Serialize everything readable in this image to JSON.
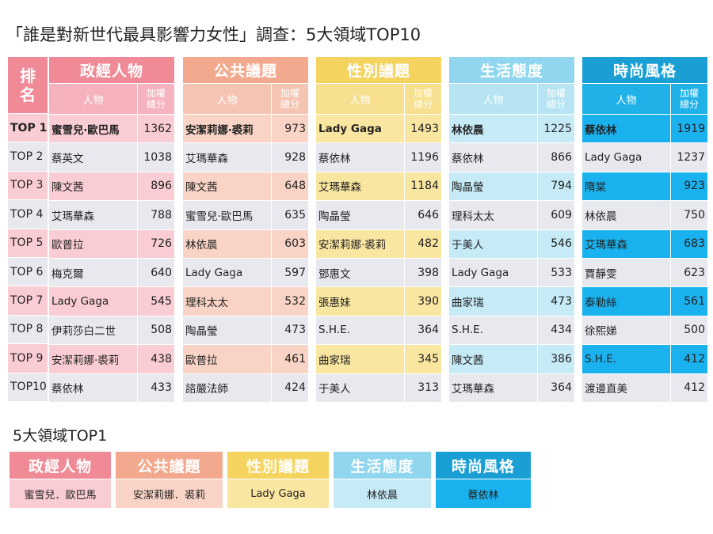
{
  "title": "「誰是對新世代最具影響力女性」調查：5大領域TOP10",
  "rank_header": "排\n名",
  "sub_headers": {
    "person": "人物",
    "score": "加權\n總分"
  },
  "ranks": [
    "TOP 1",
    "TOP 2",
    "TOP 3",
    "TOP 4",
    "TOP 5",
    "TOP 6",
    "TOP 7",
    "TOP 8",
    "TOP 9",
    "TOP10"
  ],
  "domains": [
    {
      "name": "政經人物",
      "head_color": "#f08a96",
      "sub_color": "#f6b3bd",
      "odd_color": "#f9cdd3",
      "even_color": "#e8e9ee",
      "rows": [
        [
          "蜜雪兒‧歐巴馬",
          "1362"
        ],
        [
          "蔡英文",
          "1038"
        ],
        [
          "陳文茜",
          "896"
        ],
        [
          "艾瑪華森",
          "788"
        ],
        [
          "歐普拉",
          "726"
        ],
        [
          "梅克爾",
          "640"
        ],
        [
          "Lady Gaga",
          "545"
        ],
        [
          "伊莉莎白二世",
          "508"
        ],
        [
          "安潔莉娜‧裘莉",
          "438"
        ],
        [
          "蔡依林",
          "433"
        ]
      ]
    },
    {
      "name": "公共議題",
      "head_color": "#f2a98e",
      "sub_color": "#f6c4b2",
      "odd_color": "#f9d4c6",
      "even_color": "#e8e9ee",
      "rows": [
        [
          "安潔莉娜‧裘莉",
          "973"
        ],
        [
          "艾瑪華森",
          "928"
        ],
        [
          "陳文茜",
          "648"
        ],
        [
          "蜜雪兒‧歐巴馬",
          "635"
        ],
        [
          "林依晨",
          "603"
        ],
        [
          "Lady Gaga",
          "597"
        ],
        [
          "理科太太",
          "532"
        ],
        [
          "陶晶瑩",
          "473"
        ],
        [
          "歐普拉",
          "461"
        ],
        [
          "諮嚴法師",
          "424"
        ]
      ]
    },
    {
      "name": "性別議題",
      "head_color": "#f4d35e",
      "sub_color": "#f7e08f",
      "odd_color": "#f9e6a0",
      "even_color": "#e8e9ee",
      "rows": [
        [
          "Lady Gaga",
          "1493"
        ],
        [
          "蔡依林",
          "1196"
        ],
        [
          "艾瑪華森",
          "1184"
        ],
        [
          "陶晶瑩",
          "646"
        ],
        [
          "安潔莉娜‧裘莉",
          "482"
        ],
        [
          "鄧惠文",
          "398"
        ],
        [
          "張惠妹",
          "390"
        ],
        [
          "S.H.E.",
          "364"
        ],
        [
          "曲家瑞",
          "345"
        ],
        [
          "于美人",
          "313"
        ]
      ]
    },
    {
      "name": "生活態度",
      "head_color": "#8fd6ee",
      "sub_color": "#b6e4f3",
      "odd_color": "#c6ebf7",
      "even_color": "#e8e9ee",
      "rows": [
        [
          "林依晨",
          "1225"
        ],
        [
          "蔡依林",
          "866"
        ],
        [
          "陶晶瑩",
          "794"
        ],
        [
          "理科太太",
          "609"
        ],
        [
          "于美人",
          "546"
        ],
        [
          "Lady Gaga",
          "533"
        ],
        [
          "曲家瑞",
          "473"
        ],
        [
          "S.H.E.",
          "434"
        ],
        [
          "陳文茜",
          "386"
        ],
        [
          "艾瑪華森",
          "364"
        ]
      ]
    },
    {
      "name": "時尚風格",
      "head_color": "#1a9fd4",
      "sub_color": "#1fb1e8",
      "odd_color": "#1ab2ee",
      "even_color": "#e8e9ee",
      "rows": [
        [
          "蔡依林",
          "1919"
        ],
        [
          "Lady Gaga",
          "1237"
        ],
        [
          "隋棠",
          "923"
        ],
        [
          "林依晨",
          "750"
        ],
        [
          "艾瑪華森",
          "683"
        ],
        [
          "賈靜雯",
          "623"
        ],
        [
          "泰勒絲",
          "561"
        ],
        [
          "徐熙娣",
          "500"
        ],
        [
          "S.H.E.",
          "412"
        ],
        [
          "渡邊直美",
          "412"
        ]
      ]
    }
  ],
  "top1_title": "5大領域TOP1",
  "top1": [
    {
      "name": "政經人物",
      "person": "蜜雪兒．歐巴馬",
      "head_color": "#f08a96",
      "val_color": "#f9cdd3"
    },
    {
      "name": "公共議題",
      "person": "安潔莉娜．裘莉",
      "head_color": "#f2a98e",
      "val_color": "#f9d4c6"
    },
    {
      "name": "性別議題",
      "person": "Lady Gaga",
      "head_color": "#f4d35e",
      "val_color": "#f9e6a0"
    },
    {
      "name": "生活態度",
      "person": "林依晨",
      "head_color": "#8fd6ee",
      "val_color": "#c6ebf7"
    },
    {
      "name": "時尚風格",
      "person": "蔡依林",
      "head_color": "#1a9fd4",
      "val_color": "#1ab2ee"
    }
  ]
}
